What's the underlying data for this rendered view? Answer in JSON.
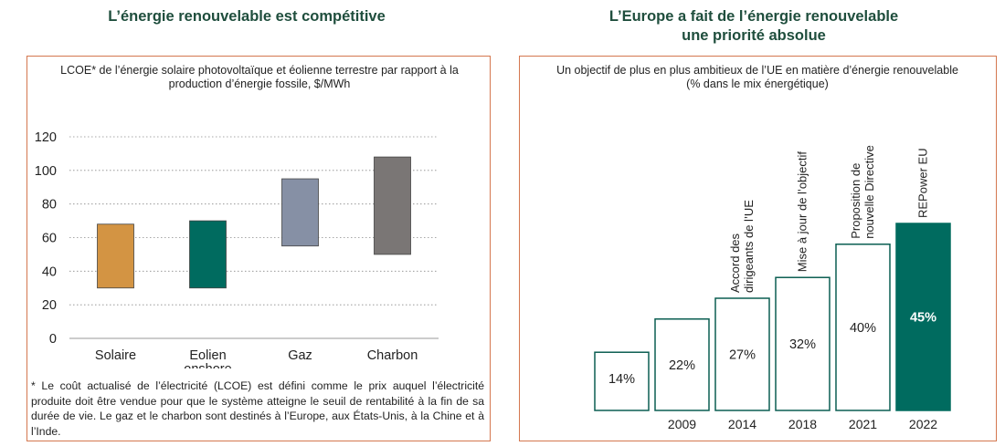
{
  "left": {
    "heading": "L’énergie renouvelable est compétitive",
    "subtitle": "LCOE* de l’énergie solaire photovoltaïque et éolienne terrestre par rapport à la production d’énergie fossile, $/MWh",
    "footnote": "* Le coût actualisé de l’électricité (LCOE) est défini comme le prix auquel l’électricité produite doit être vendue pour que le système atteigne le seuil de rentabilité à la fin de sa durée de vie. Le gaz et le charbon sont destinés à l’Europe, aux États-Unis, à la Chine et à l’Inde."
  },
  "right": {
    "heading_line1": "L’Europe a fait de l’énergie renouvelable",
    "heading_line2": "une priorité absolue",
    "subtitle_line1": "Un objectif de plus en plus ambitieux de l’UE en matière d’énergie renouvelable",
    "subtitle_line2": "(% dans le mix énergétique)"
  },
  "chart_data": [
    {
      "type": "bar",
      "subtype": "floating-range",
      "title": "LCOE* de l’énergie solaire photovoltaïque et éolienne terrestre par rapport à la production d’énergie fossile, $/MWh",
      "categories": [
        [
          "Solaire"
        ],
        [
          "Eolien",
          "onshore"
        ],
        [
          "Gaz"
        ],
        [
          "Charbon"
        ]
      ],
      "low": [
        30,
        30,
        55,
        50
      ],
      "high": [
        68,
        70,
        95,
        108
      ],
      "colors": [
        "#d39443",
        "#006b5f",
        "#8690a5",
        "#7a7675"
      ],
      "ylim": [
        0,
        120
      ],
      "yticks": [
        0,
        20,
        40,
        60,
        80,
        100,
        120
      ],
      "grid": true
    },
    {
      "type": "bar",
      "subtype": "step",
      "title": "Un objectif de plus en plus ambitieux de l’UE en matière d’énergie renouvelable (% dans le mix énergétique)",
      "values": [
        14,
        22,
        27,
        32,
        40,
        45
      ],
      "value_labels": [
        "14%",
        "22%",
        "27%",
        "32%",
        "40%",
        "45%"
      ],
      "years": [
        "",
        "2009",
        "2014",
        "2018",
        "2021",
        "2022"
      ],
      "annotations": [
        [],
        [],
        [
          "Accord des",
          "dirigeants de l’UE"
        ],
        [
          "Mise à jour de l’objectif"
        ],
        [
          "Proposition de",
          "nouvelle Directive"
        ],
        [
          "REPower EU"
        ]
      ],
      "highlight_index": 5,
      "highlight_color": "#006b5f"
    }
  ]
}
